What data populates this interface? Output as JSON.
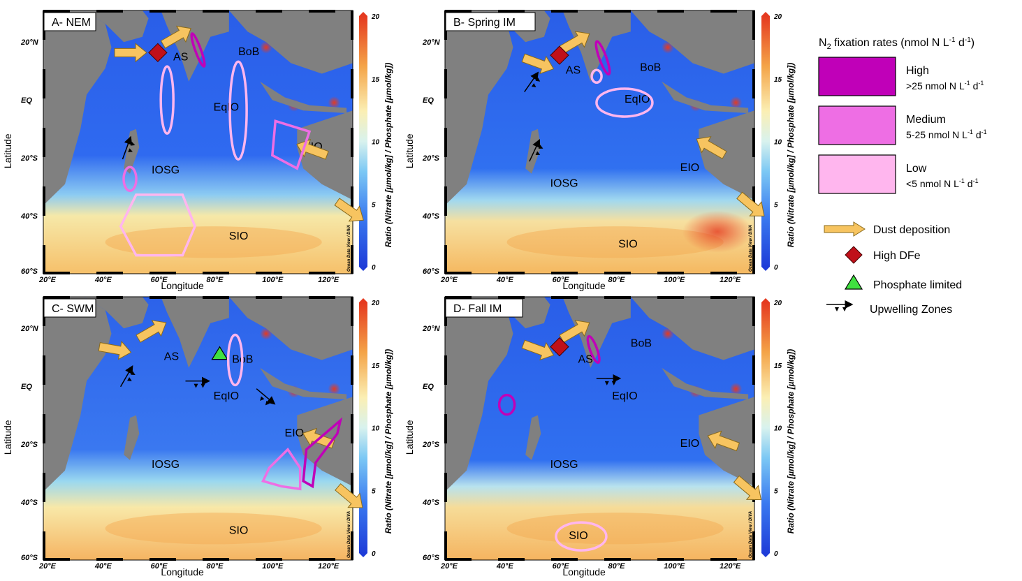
{
  "panels": [
    {
      "id": "A",
      "title": "A- NEM",
      "region_labels": {
        "as": "AS",
        "bob": "BoB",
        "eqio": "EqIO",
        "eio": "EIO",
        "iosg": "IOSG",
        "sio": "SIO"
      }
    },
    {
      "id": "B",
      "title": "B- Spring IM",
      "region_labels": {
        "as": "AS",
        "bob": "BoB",
        "eqio": "EqIO",
        "eio": "EIO",
        "iosg": "IOSG",
        "sio": "SIO"
      }
    },
    {
      "id": "C",
      "title": "C- SWM",
      "region_labels": {
        "as": "AS",
        "bob": "BoB",
        "eqio": "EqIO",
        "eio": "EIO",
        "iosg": "IOSG",
        "sio": "SIO"
      }
    },
    {
      "id": "D",
      "title": "D- Fall IM",
      "region_labels": {
        "as": "AS",
        "bob": "BoB",
        "eqio": "EqIO",
        "eio": "EIO",
        "iosg": "IOSG",
        "sio": "SIO"
      }
    }
  ],
  "axes": {
    "xlabel": "Longitude",
    "ylabel": "Latitude",
    "xticks": [
      "20°E",
      "40°E",
      "60°E",
      "80°E",
      "100°E",
      "120°E"
    ],
    "yticks": [
      "20°N",
      "EQ",
      "20°S",
      "40°S",
      "60°S"
    ]
  },
  "colorbar": {
    "label": "Ratio (Nitrate [µmol/kg] / Phosphate [µmol/kg])",
    "ticks": [
      "20",
      "15",
      "10",
      "5",
      "0"
    ],
    "credit": "Ocean Data View / DIVA",
    "colors": [
      "#2040d8",
      "#3a78f0",
      "#9adcef",
      "#fbefb4",
      "#f5b45c",
      "#e8462a"
    ]
  },
  "legend": {
    "n2_title": "N2 fixation rates (nmol N L-1 d-1)",
    "n2_title_main": "N",
    "n2_title_sub": "2",
    "n2_title_rest": " fixation rates (nmol N L",
    "n2_title_sup1": "-1",
    "n2_title_mid": " d",
    "n2_title_sup2": "-1",
    "n2_title_end": ")",
    "high_label": "High",
    "high_range": ">25 nmol N L",
    "medium_label": "Medium",
    "medium_range": "5-25 nmol N L",
    "low_label": "Low",
    "low_range": "<5 nmol N L",
    "range_unit_sup1": "-1",
    "range_unit_mid": " d",
    "range_unit_sup2": "-1",
    "dust_label": "Dust deposition",
    "dfe_label": "High DFe",
    "phosphate_label": "Phosphate limited",
    "upwelling_label": "Upwelling Zones",
    "colors": {
      "high": "#c000b8",
      "medium": "#ee6ee4",
      "low": "#ffb6ee",
      "dust": "#f7c460",
      "dfe": "#c0101a",
      "phosphate": "#40e040",
      "land": "#808080"
    }
  }
}
